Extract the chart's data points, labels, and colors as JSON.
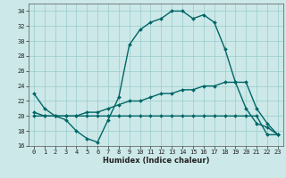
{
  "xlabel": "Humidex (Indice chaleur)",
  "bg_color": "#cce8e8",
  "grid_color": "#99cccc",
  "line_color": "#006666",
  "xlim": [
    -0.5,
    23.5
  ],
  "ylim": [
    16,
    35
  ],
  "xticks": [
    0,
    1,
    2,
    3,
    4,
    5,
    6,
    7,
    8,
    9,
    10,
    11,
    12,
    13,
    14,
    15,
    16,
    17,
    18,
    19,
    20,
    21,
    22,
    23
  ],
  "yticks": [
    16,
    18,
    20,
    22,
    24,
    26,
    28,
    30,
    32,
    34
  ],
  "curve1_x": [
    0,
    1,
    2,
    3,
    4,
    5,
    6,
    7,
    8,
    9,
    10,
    11,
    12,
    13,
    14,
    15,
    16,
    17,
    18,
    19,
    20,
    21,
    22,
    23
  ],
  "curve1_y": [
    23,
    21,
    20,
    19.5,
    18,
    17,
    16.5,
    19.5,
    22.5,
    29.5,
    31.5,
    32.5,
    33,
    34,
    34,
    33,
    33.5,
    32.5,
    29,
    24.5,
    21,
    19,
    18.5,
    17.5
  ],
  "curve2_x": [
    0,
    1,
    2,
    3,
    4,
    5,
    6,
    7,
    8,
    9,
    10,
    11,
    12,
    13,
    14,
    15,
    16,
    17,
    18,
    19,
    20,
    21,
    22,
    23
  ],
  "curve2_y": [
    20.5,
    20,
    20,
    20,
    20,
    20.5,
    20.5,
    21,
    21.5,
    22,
    22,
    22.5,
    23,
    23,
    23.5,
    23.5,
    24,
    24,
    24.5,
    24.5,
    24.5,
    21,
    19,
    17.5
  ],
  "curve3_x": [
    0,
    1,
    2,
    3,
    4,
    5,
    6,
    7,
    8,
    9,
    10,
    11,
    12,
    13,
    14,
    15,
    16,
    17,
    18,
    19,
    20,
    21,
    22,
    23
  ],
  "curve3_y": [
    20,
    20,
    20,
    20,
    20,
    20,
    20,
    20,
    20,
    20,
    20,
    20,
    20,
    20,
    20,
    20,
    20,
    20,
    20,
    20,
    20,
    20,
    17.5,
    17.5
  ]
}
